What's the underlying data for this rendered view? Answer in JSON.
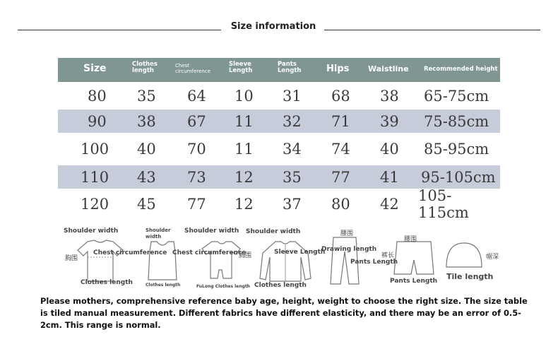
{
  "title": "Size information",
  "header": {
    "size": "Size",
    "clothes_length": "Clothes length",
    "chest": "Chest circumference",
    "sleeve": "Sleeve Length",
    "pants": "Pants Length",
    "hips": "Hips",
    "waistline": "Waistline",
    "recommended": "Recommended height"
  },
  "rows": [
    {
      "size": "80",
      "clothes": "35",
      "chest": "64",
      "sleeve": "10",
      "pants": "31",
      "hips": "68",
      "waist": "38",
      "height": "65-75cm"
    },
    {
      "size": "90",
      "clothes": "38",
      "chest": "67",
      "sleeve": "11",
      "pants": "32",
      "hips": "71",
      "waist": "39",
      "height": "75-85cm"
    },
    {
      "size": "100",
      "clothes": "40",
      "chest": "70",
      "sleeve": "11",
      "pants": "34",
      "hips": "74",
      "waist": "40",
      "height": "85-95cm"
    },
    {
      "size": "110",
      "clothes": "43",
      "chest": "73",
      "sleeve": "12",
      "pants": "35",
      "hips": "77",
      "waist": "41",
      "height": "95-105cm"
    },
    {
      "size": "120",
      "clothes": "45",
      "chest": "77",
      "sleeve": "12",
      "pants": "37",
      "hips": "80",
      "waist": "42",
      "height": "105-115cm"
    }
  ],
  "illustrations": {
    "tshirt": {
      "shoulder": "Shoulder width",
      "chest_cn": "胸围",
      "chest": "Chest circumference",
      "length": "Clothes length"
    },
    "vest": {
      "shoulder": "Shoulder width",
      "length": "Clothes length"
    },
    "romper": {
      "shoulder": "Shoulder width",
      "chest": "Chest circumference",
      "length": "FuLong Clothes length"
    },
    "jacket": {
      "shoulder": "Shoulder width",
      "chest_cn": "胸围",
      "sleeve": "Sleeve Length",
      "length": "Clothes length"
    },
    "pants": {
      "waist_cn": "腰围",
      "drawing": "Drawing length",
      "pants": "Pants Length"
    },
    "shorts": {
      "waist_cn": "腰围",
      "side_cn": "裤长",
      "pants": "Pants Length"
    },
    "hat": {
      "depth_cn": "帽深",
      "tile": "Tile length"
    }
  },
  "note": "Please mothers, comprehensive reference baby age, height, weight to choose the right size. The size table is tiled manual measurement. Different fabrics have different elasticity, and there may be an error of 0.5-2cm. This range is normal."
}
